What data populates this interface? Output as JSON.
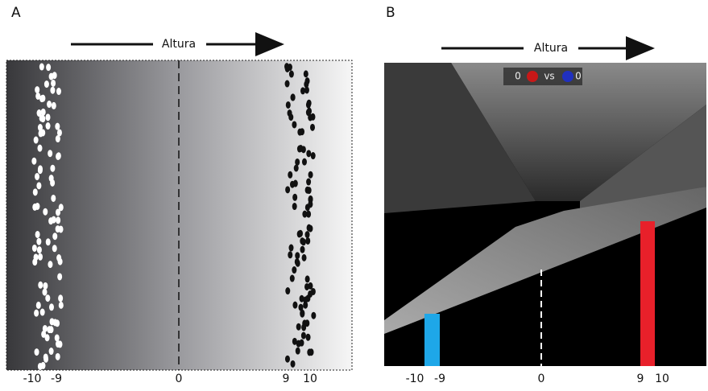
{
  "panel_a": {
    "label": "A",
    "axis_label": "Altura",
    "ticks": [
      -10,
      -9,
      0,
      9,
      10
    ]
  },
  "panel_b": {
    "label": "B",
    "axis_label": "Altura",
    "ticks": [
      -10,
      -9,
      0,
      9,
      10
    ],
    "score": {
      "left": 0,
      "vs": "vs",
      "right": 0
    }
  }
}
